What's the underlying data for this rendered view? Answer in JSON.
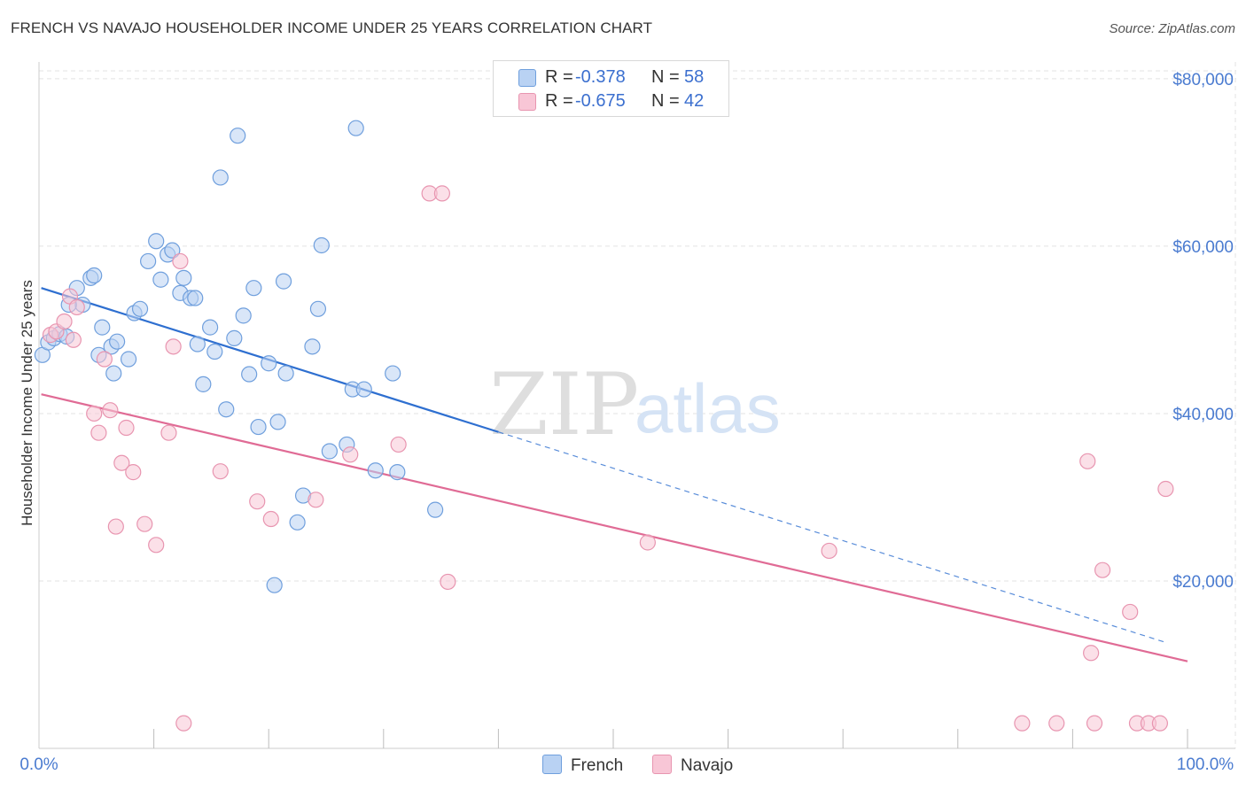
{
  "title": "FRENCH VS NAVAJO HOUSEHOLDER INCOME UNDER 25 YEARS CORRELATION CHART",
  "source": "Source: ZipAtlas.com",
  "watermark": {
    "zip": "ZIP",
    "atlas": "atlas"
  },
  "colors": {
    "french_fill": "#b9d2f3",
    "french_stroke": "#6f9fdd",
    "french_line": "#2e6fd0",
    "navajo_fill": "#f8c6d6",
    "navajo_stroke": "#e895b0",
    "navajo_line": "#e06b95",
    "grid": "#e3e3e3",
    "axis_text": "#4a7bd0"
  },
  "legend": {
    "rows": [
      {
        "r_label": "R =",
        "r_value": "-0.378",
        "n_label": "N =",
        "n_value": "58"
      },
      {
        "r_label": "R =",
        "r_value": "-0.675",
        "n_label": "N =",
        "n_value": "42"
      }
    ]
  },
  "bottom_legend": {
    "french": "French",
    "navajo": "Navajo"
  },
  "chart_data": {
    "type": "scatter",
    "title": "FRENCH VS NAVAJO HOUSEHOLDER INCOME UNDER 25 YEARS CORRELATION CHART",
    "xlabel": "",
    "ylabel": "Householder Income Under 25 years",
    "xlim": [
      0,
      100
    ],
    "ylim": [
      0,
      82000
    ],
    "x_tick_labels": [
      "0.0%",
      "100.0%"
    ],
    "y_ticks": [
      20000,
      40000,
      60000,
      80000
    ],
    "y_tick_labels": [
      "$20,000",
      "$40,000",
      "$60,000",
      "$80,000"
    ],
    "grid": true,
    "legend_position": "top-center",
    "series": [
      {
        "name": "French",
        "R": -0.378,
        "N": 58,
        "trend": {
          "x0": 0.2,
          "y0": 55000,
          "x_solid_end": 40,
          "y_solid_end": 37800,
          "x_dash_end": 98,
          "y_dash_end": 12700
        },
        "points": [
          [
            0.3,
            47000
          ],
          [
            0.8,
            48500
          ],
          [
            1.3,
            49000
          ],
          [
            1.8,
            49500
          ],
          [
            2.4,
            49200
          ],
          [
            3.3,
            55000
          ],
          [
            3.8,
            53000
          ],
          [
            2.6,
            53000
          ],
          [
            4.5,
            56200
          ],
          [
            4.8,
            56500
          ],
          [
            5.5,
            50300
          ],
          [
            5.2,
            47000
          ],
          [
            6.3,
            48000
          ],
          [
            6.8,
            48600
          ],
          [
            6.5,
            44800
          ],
          [
            7.8,
            46500
          ],
          [
            8.3,
            52000
          ],
          [
            8.8,
            52500
          ],
          [
            9.5,
            58200
          ],
          [
            10.2,
            60600
          ],
          [
            10.6,
            56000
          ],
          [
            11.2,
            59000
          ],
          [
            11.6,
            59500
          ],
          [
            12.3,
            54400
          ],
          [
            12.6,
            56200
          ],
          [
            13.2,
            53800
          ],
          [
            13.6,
            53800
          ],
          [
            13.8,
            48300
          ],
          [
            14.3,
            43500
          ],
          [
            14.9,
            50300
          ],
          [
            15.3,
            47400
          ],
          [
            15.8,
            68200
          ],
          [
            16.3,
            40500
          ],
          [
            17.0,
            49000
          ],
          [
            17.3,
            73200
          ],
          [
            17.8,
            51700
          ],
          [
            18.3,
            44700
          ],
          [
            18.7,
            55000
          ],
          [
            19.1,
            38400
          ],
          [
            20.0,
            46000
          ],
          [
            20.5,
            19500
          ],
          [
            20.8,
            39000
          ],
          [
            21.3,
            55800
          ],
          [
            21.5,
            44800
          ],
          [
            22.5,
            27000
          ],
          [
            23.0,
            30200
          ],
          [
            23.8,
            48000
          ],
          [
            24.3,
            52500
          ],
          [
            24.6,
            60100
          ],
          [
            25.3,
            35500
          ],
          [
            26.8,
            36300
          ],
          [
            27.3,
            42900
          ],
          [
            27.6,
            74100
          ],
          [
            28.3,
            42900
          ],
          [
            29.3,
            33200
          ],
          [
            30.8,
            44800
          ],
          [
            31.2,
            33000
          ],
          [
            34.5,
            28500
          ]
        ]
      },
      {
        "name": "Navajo",
        "R": -0.675,
        "N": 42,
        "trend": {
          "x0": 0.2,
          "y0": 42300,
          "x1": 100,
          "y1": 10400
        },
        "points": [
          [
            1.0,
            49400
          ],
          [
            1.5,
            49800
          ],
          [
            2.2,
            51000
          ],
          [
            2.7,
            54000
          ],
          [
            3.0,
            48800
          ],
          [
            3.3,
            52700
          ],
          [
            4.8,
            40000
          ],
          [
            5.2,
            37700
          ],
          [
            5.7,
            46500
          ],
          [
            6.2,
            40400
          ],
          [
            6.7,
            26500
          ],
          [
            7.2,
            34100
          ],
          [
            7.6,
            38300
          ],
          [
            8.2,
            33000
          ],
          [
            9.2,
            26800
          ],
          [
            10.2,
            24300
          ],
          [
            11.3,
            37700
          ],
          [
            11.7,
            48000
          ],
          [
            12.3,
            58200
          ],
          [
            12.6,
            3000
          ],
          [
            15.8,
            33100
          ],
          [
            19.0,
            29500
          ],
          [
            20.2,
            27400
          ],
          [
            24.1,
            29700
          ],
          [
            27.1,
            35100
          ],
          [
            31.3,
            36300
          ],
          [
            34.0,
            66300
          ],
          [
            35.1,
            66300
          ],
          [
            35.6,
            19900
          ],
          [
            53.0,
            24600
          ],
          [
            68.8,
            23600
          ],
          [
            85.6,
            3000
          ],
          [
            88.6,
            3000
          ],
          [
            91.3,
            34300
          ],
          [
            91.6,
            11400
          ],
          [
            91.9,
            3000
          ],
          [
            92.6,
            21300
          ],
          [
            95.0,
            16300
          ],
          [
            95.6,
            3000
          ],
          [
            96.6,
            3000
          ],
          [
            97.6,
            3000
          ],
          [
            98.1,
            31000
          ]
        ]
      }
    ]
  }
}
